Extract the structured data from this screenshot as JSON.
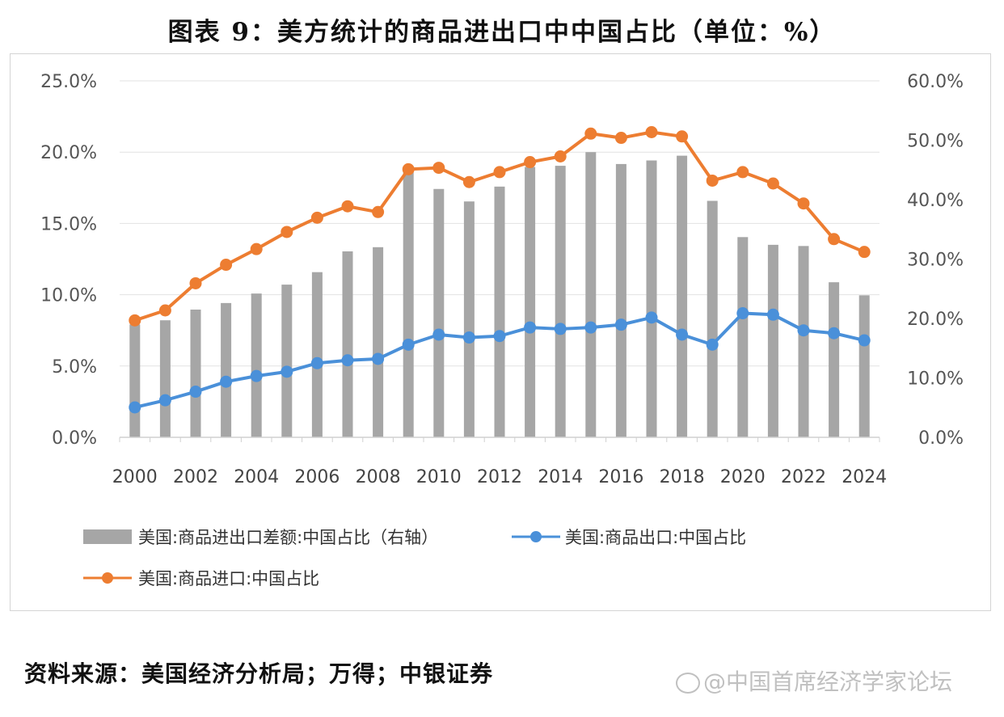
{
  "title": "图表 9：美方统计的商品进出口中中国占比（单位：%）",
  "source": "资料来源：美国经济分析局；万得；中银证券",
  "watermark": "@中国首席经济学家论坛",
  "chart_data": {
    "type": "bar+line",
    "x": [
      2000,
      2001,
      2002,
      2003,
      2004,
      2005,
      2006,
      2007,
      2008,
      2009,
      2010,
      2011,
      2012,
      2013,
      2014,
      2015,
      2016,
      2017,
      2018,
      2019,
      2020,
      2021,
      2022,
      2023,
      2024
    ],
    "x_ticks": [
      "2000",
      "2002",
      "2004",
      "2006",
      "2008",
      "2010",
      "2012",
      "2014",
      "2016",
      "2018",
      "2020",
      "2022",
      "2024"
    ],
    "left_axis": {
      "ylim": [
        0,
        25
      ],
      "ticks": [
        "0.0%",
        "5.0%",
        "10.0%",
        "15.0%",
        "20.0%",
        "25.0%"
      ]
    },
    "right_axis": {
      "ylim": [
        0,
        60
      ],
      "ticks": [
        "0.0%",
        "10.0%",
        "20.0%",
        "30.0%",
        "40.0%",
        "50.0%",
        "60.0%"
      ]
    },
    "grid": true,
    "legend_position": "bottom",
    "series": [
      {
        "name": "美国:商品进出口差额:中国占比（右轴）",
        "type": "bar",
        "axis": "right",
        "color": "#a6a6a6",
        "values": [
          19.0,
          19.7,
          21.5,
          22.6,
          24.2,
          25.7,
          27.8,
          31.3,
          32.0,
          44.8,
          41.8,
          39.7,
          42.2,
          45.5,
          45.7,
          48.0,
          46.0,
          46.6,
          47.4,
          39.8,
          33.7,
          32.4,
          32.2,
          26.1,
          23.9
        ]
      },
      {
        "name": "美国:商品出口:中国占比",
        "type": "line",
        "axis": "left",
        "color": "#4a90d9",
        "values": [
          2.1,
          2.6,
          3.2,
          3.9,
          4.3,
          4.6,
          5.2,
          5.4,
          5.5,
          6.5,
          7.2,
          7.0,
          7.1,
          7.7,
          7.6,
          7.7,
          7.9,
          8.4,
          7.2,
          6.5,
          8.7,
          8.6,
          7.5,
          7.3,
          6.8
        ]
      },
      {
        "name": "美国:商品进口:中国占比",
        "type": "line",
        "axis": "left",
        "color": "#ed7d31",
        "values": [
          8.2,
          8.9,
          10.8,
          12.1,
          13.2,
          14.4,
          15.4,
          16.2,
          15.8,
          18.8,
          18.9,
          17.9,
          18.6,
          19.3,
          19.7,
          21.3,
          21.0,
          21.4,
          21.1,
          18.0,
          18.6,
          17.8,
          16.4,
          13.9,
          13.0
        ]
      }
    ]
  }
}
